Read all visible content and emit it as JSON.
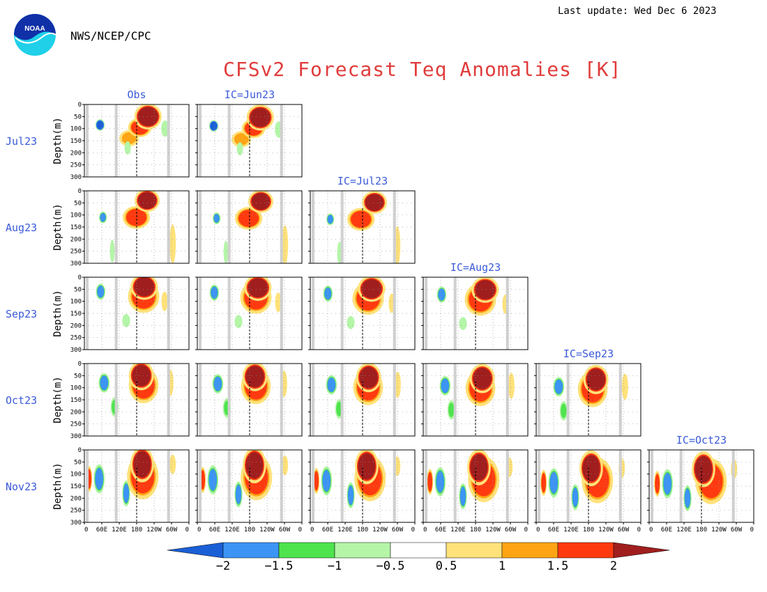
{
  "header": {
    "last_update": "Last update: Wed Dec 6 2023",
    "agency": "NWS/NCEP/CPC",
    "logo_text": "NOAA"
  },
  "colors": {
    "title": "#e03c3c",
    "labels": "#3a5ad8",
    "land_mask": "#d0d0d0",
    "minus_2": "#1a5fd6",
    "minus_1_5": "#3c94f5",
    "minus_1": "#4ee44e",
    "minus_0_5": "#b4f5a8",
    "plus_0_5": "#ffe27a",
    "plus_1": "#ffa514",
    "plus_1_5": "#ff3a10",
    "plus_2": "#a01e1e"
  },
  "chart_data": {
    "type": "heatmap",
    "title": "CFSv2 Forecast Teq Anomalies [K]",
    "ylabel": "Depth(m)",
    "y_ticks": [
      "0",
      "50",
      "100",
      "150",
      "200",
      "250",
      "300"
    ],
    "ylim": [
      300,
      0
    ],
    "x_ticks": [
      "0",
      "60E",
      "120E",
      "180",
      "120W",
      "60W",
      "0"
    ],
    "xlim": [
      0,
      360
    ],
    "target_months": [
      "Jul23",
      "Aug23",
      "Sep23",
      "Oct23",
      "Nov23"
    ],
    "columns": [
      "Obs",
      "IC=Jun23",
      "IC=Jul23",
      "IC=Aug23",
      "IC=Sep23",
      "IC=Oct23"
    ],
    "column_header_placement": [
      {
        "label": "Obs",
        "row": 0,
        "col": 0
      },
      {
        "label": "IC=Jun23",
        "row": 0,
        "col": 1
      },
      {
        "label": "IC=Jul23",
        "row": 1,
        "col": 2
      },
      {
        "label": "IC=Aug23",
        "row": 2,
        "col": 3
      },
      {
        "label": "IC=Sep23",
        "row": 3,
        "col": 4
      },
      {
        "label": "IC=Oct23",
        "row": 4,
        "col": 5
      }
    ],
    "panels_per_row": [
      2,
      3,
      4,
      5,
      6
    ],
    "colorbar": {
      "labels": [
        "−2",
        "−1.5",
        "−1",
        "−0.5",
        "0.5",
        "1",
        "1.5",
        "2"
      ],
      "boundaries": [
        -2,
        -1.5,
        -1,
        -0.5,
        0.5,
        1,
        1.5,
        2
      ]
    }
  }
}
